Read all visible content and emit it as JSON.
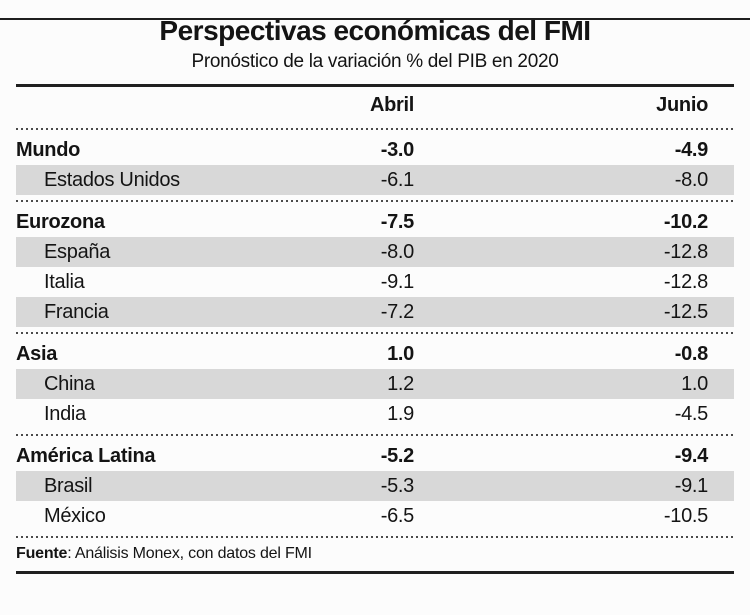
{
  "header": {
    "title": "Perspectivas económicas del FMI",
    "subtitle": "Pronóstico de la variación % del PIB en 2020"
  },
  "table": {
    "columns": [
      "Abril",
      "Junio"
    ],
    "rows": [
      {
        "label": "Mundo",
        "abril": "-3.0",
        "junio": "-4.9",
        "bold": true,
        "shaded": false,
        "indent": false,
        "section_start": false
      },
      {
        "label": "Estados Unidos",
        "abril": "-6.1",
        "junio": "-8.0",
        "bold": false,
        "shaded": true,
        "indent": true,
        "section_start": false
      },
      {
        "label": "Eurozona",
        "abril": "-7.5",
        "junio": "-10.2",
        "bold": true,
        "shaded": false,
        "indent": false,
        "section_start": true
      },
      {
        "label": "España",
        "abril": "-8.0",
        "junio": "-12.8",
        "bold": false,
        "shaded": true,
        "indent": true,
        "section_start": false
      },
      {
        "label": "Italia",
        "abril": "-9.1",
        "junio": "-12.8",
        "bold": false,
        "shaded": false,
        "indent": true,
        "section_start": false
      },
      {
        "label": "Francia",
        "abril": "-7.2",
        "junio": "-12.5",
        "bold": false,
        "shaded": true,
        "indent": true,
        "section_start": false
      },
      {
        "label": "Asia",
        "abril": "1.0",
        "junio": "-0.8",
        "bold": true,
        "shaded": false,
        "indent": false,
        "section_start": true
      },
      {
        "label": "China",
        "abril": "1.2",
        "junio": "1.0",
        "bold": false,
        "shaded": true,
        "indent": true,
        "section_start": false
      },
      {
        "label": "India",
        "abril": "1.9",
        "junio": "-4.5",
        "bold": false,
        "shaded": false,
        "indent": true,
        "section_start": false
      },
      {
        "label": "América Latina",
        "abril": "-5.2",
        "junio": "-9.4",
        "bold": true,
        "shaded": false,
        "indent": false,
        "section_start": true
      },
      {
        "label": "Brasil",
        "abril": "-5.3",
        "junio": "-9.1",
        "bold": false,
        "shaded": true,
        "indent": true,
        "section_start": false
      },
      {
        "label": "México",
        "abril": "-6.5",
        "junio": "-10.5",
        "bold": false,
        "shaded": false,
        "indent": true,
        "section_start": false
      }
    ]
  },
  "footer": {
    "source_label": "Fuente",
    "source_rest": ": Análisis Monex, con datos del FMI"
  },
  "colors": {
    "stripe": "#d8d8d8",
    "text": "#141414",
    "rule": "#1f1f1f",
    "background": "#fcfcfc"
  },
  "chart_data": {
    "type": "table",
    "title": "Perspectivas económicas del FMI",
    "subtitle": "Pronóstico de la variación % del PIB en 2020",
    "columns": [
      "Abril",
      "Junio"
    ],
    "rows": [
      {
        "region": "Mundo",
        "abril": -3.0,
        "junio": -4.9,
        "group_header": true
      },
      {
        "region": "Estados Unidos",
        "abril": -6.1,
        "junio": -8.0,
        "group_header": false
      },
      {
        "region": "Eurozona",
        "abril": -7.5,
        "junio": -10.2,
        "group_header": true
      },
      {
        "region": "España",
        "abril": -8.0,
        "junio": -12.8,
        "group_header": false
      },
      {
        "region": "Italia",
        "abril": -9.1,
        "junio": -12.8,
        "group_header": false
      },
      {
        "region": "Francia",
        "abril": -7.2,
        "junio": -12.5,
        "group_header": false
      },
      {
        "region": "Asia",
        "abril": 1.0,
        "junio": -0.8,
        "group_header": true
      },
      {
        "region": "China",
        "abril": 1.2,
        "junio": 1.0,
        "group_header": false
      },
      {
        "region": "India",
        "abril": 1.9,
        "junio": -4.5,
        "group_header": false
      },
      {
        "region": "América Latina",
        "abril": -5.2,
        "junio": -9.4,
        "group_header": true
      },
      {
        "region": "Brasil",
        "abril": -5.3,
        "junio": -9.1,
        "group_header": false
      },
      {
        "region": "México",
        "abril": -6.5,
        "junio": -10.5,
        "group_header": false
      }
    ],
    "units": "% change of GDP",
    "source": "Fuente: Análisis Monex, con datos del FMI"
  }
}
